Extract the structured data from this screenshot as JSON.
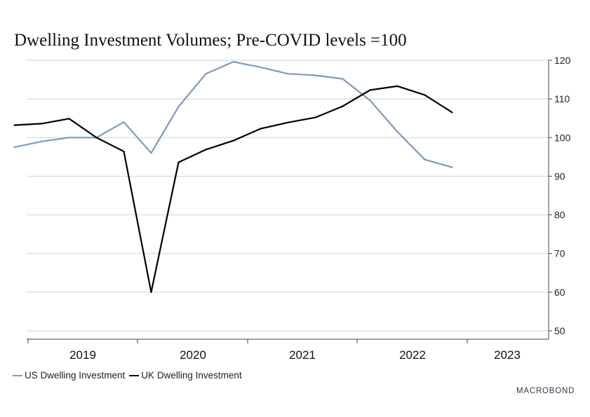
{
  "chart_data": {
    "type": "line",
    "title": "Dwelling Investment Volumes; Pre-COVID levels =100",
    "x_labels": [
      "2019",
      "2020",
      "2021",
      "2022",
      "2023"
    ],
    "ylim": [
      50,
      120
    ],
    "yticks": [
      50,
      60,
      70,
      80,
      90,
      100,
      110,
      120
    ],
    "y_axis_side": "right",
    "grid": true,
    "legend_position": "bottom-left",
    "series": [
      {
        "name": "US Dwelling Investment",
        "color": "#7b9bbd",
        "x": [
          "2018-Q4",
          "2019-Q1",
          "2019-Q2",
          "2019-Q3",
          "2019-Q4",
          "2020-Q1",
          "2020-Q2",
          "2020-Q3",
          "2020-Q4",
          "2021-Q1",
          "2021-Q2",
          "2021-Q3",
          "2021-Q4",
          "2022-Q1",
          "2022-Q2",
          "2022-Q3",
          "2022-Q4"
        ],
        "values": [
          97.5,
          99,
          100,
          100,
          104,
          96,
          108,
          116.5,
          119.6,
          118.2,
          116.5,
          116.1,
          115.2,
          109.6,
          101.5,
          94.3,
          92.3
        ]
      },
      {
        "name": "UK Dwelling Investment",
        "color": "#000000",
        "x": [
          "2018-Q4",
          "2019-Q1",
          "2019-Q2",
          "2019-Q3",
          "2019-Q4",
          "2020-Q1",
          "2020-Q2",
          "2020-Q3",
          "2020-Q4",
          "2021-Q1",
          "2021-Q2",
          "2021-Q3",
          "2021-Q4",
          "2022-Q1",
          "2022-Q2",
          "2022-Q3",
          "2022-Q4"
        ],
        "values": [
          103.2,
          103.6,
          104.9,
          100,
          96.4,
          60,
          93.6,
          96.9,
          99.2,
          102.3,
          103.9,
          105.2,
          108.1,
          112.3,
          113.3,
          111,
          106.5
        ]
      }
    ]
  },
  "brand": {
    "text": "MACROBOND"
  }
}
